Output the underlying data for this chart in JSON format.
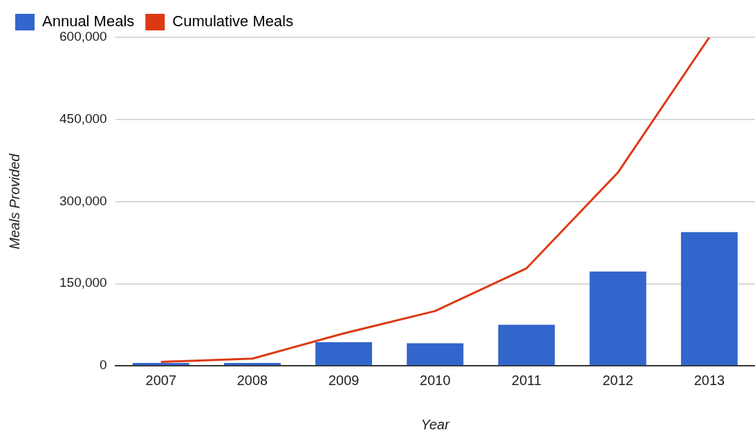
{
  "chart_data": {
    "type": "bar",
    "xlabel": "Year",
    "ylabel": "Meals Provided",
    "categories": [
      "2007",
      "2008",
      "2009",
      "2010",
      "2011",
      "2012",
      "2013"
    ],
    "series": [
      {
        "name": "Annual Meals",
        "color": "#3366cc",
        "values": [
          5000,
          5000,
          43000,
          41000,
          75000,
          172000,
          244000
        ]
      },
      {
        "name": "Cumulative Meals",
        "type": "line",
        "color": "#dc3912",
        "values": [
          7000,
          13000,
          59000,
          100000,
          178000,
          353000,
          600000
        ]
      }
    ],
    "ylim": [
      0,
      600000
    ],
    "yticks": [
      0,
      {
        "value": 150000,
        "label": "150,000"
      },
      {
        "value": 300000,
        "label": "300,000"
      },
      {
        "value": 450000,
        "label": "450,000"
      },
      {
        "value": 600000,
        "label": "600,000"
      }
    ],
    "grid": "y",
    "legend": "top left",
    "marker": "none"
  }
}
